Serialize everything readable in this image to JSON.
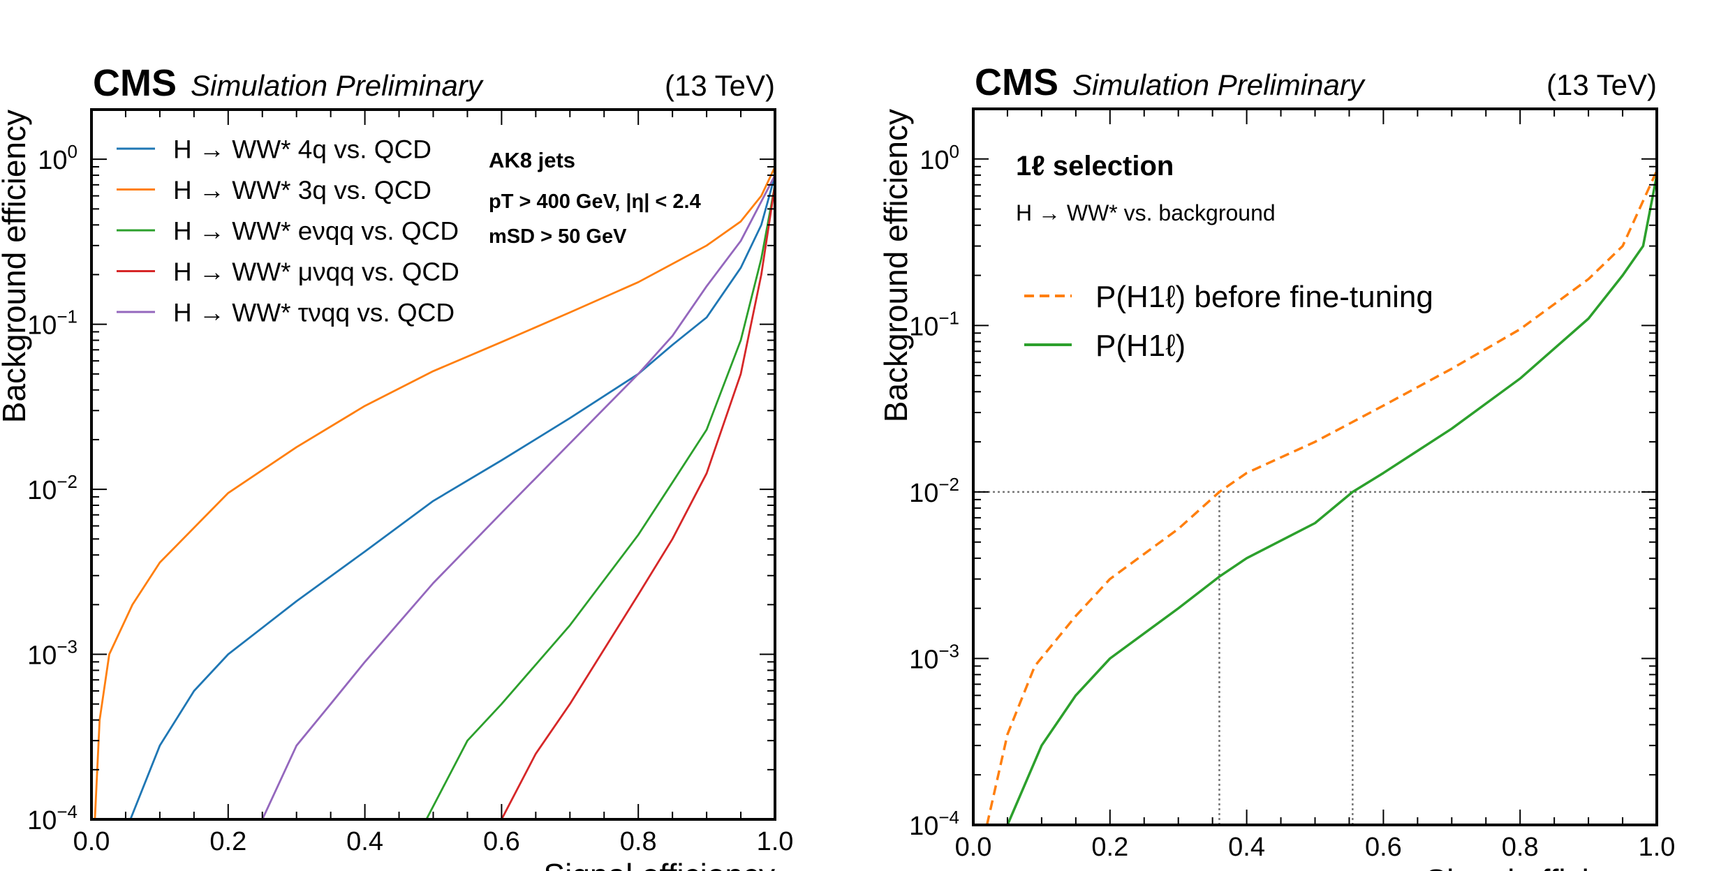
{
  "chart_data": [
    {
      "type": "line",
      "header": {
        "experiment": "CMS",
        "status": "Simulation Preliminary",
        "energy": "(13 TeV)"
      },
      "xlabel": "Signal efficiency",
      "ylabel": "Background efficiency",
      "xlim": [
        0,
        1
      ],
      "ylim": [
        0.0001,
        2
      ],
      "yscale": "log",
      "xticks": [
        "0.0",
        "0.2",
        "0.4",
        "0.6",
        "0.8",
        "1.0"
      ],
      "yticks": [
        {
          "base": "10",
          "exp": "−4",
          "value": 0.0001
        },
        {
          "base": "10",
          "exp": "−3",
          "value": 0.001
        },
        {
          "base": "10",
          "exp": "−2",
          "value": 0.01
        },
        {
          "base": "10",
          "exp": "−1",
          "value": 0.1
        },
        {
          "base": "10",
          "exp": "0",
          "value": 1
        }
      ],
      "legend_position": "top-left",
      "annotations": [
        "AK8 jets",
        "pT > 400 GeV, |η| < 2.4",
        "mSD > 50 GeV"
      ],
      "series": [
        {
          "name": "H → WW* 4q vs. QCD",
          "color": "#1f77b4",
          "dash": false,
          "x": [
            0.057,
            0.1,
            0.15,
            0.2,
            0.3,
            0.4,
            0.5,
            0.6,
            0.7,
            0.8,
            0.85,
            0.9,
            0.95,
            0.98,
            1.0
          ],
          "y": [
            0.0001,
            0.00028,
            0.0006,
            0.001,
            0.0021,
            0.0042,
            0.0085,
            0.015,
            0.027,
            0.05,
            0.075,
            0.11,
            0.22,
            0.4,
            0.8
          ]
        },
        {
          "name": "H → WW* 3q vs. QCD",
          "color": "#ff7f0e",
          "dash": false,
          "x": [
            0.005,
            0.012,
            0.026,
            0.06,
            0.1,
            0.2,
            0.3,
            0.4,
            0.5,
            0.6,
            0.7,
            0.8,
            0.9,
            0.95,
            0.98,
            1.0
          ],
          "y": [
            0.0001,
            0.0004,
            0.001,
            0.002,
            0.0036,
            0.0095,
            0.018,
            0.032,
            0.052,
            0.078,
            0.118,
            0.18,
            0.3,
            0.42,
            0.6,
            0.9
          ]
        },
        {
          "name": "H → WW* eνqq vs. QCD",
          "color": "#2ca02c",
          "dash": false,
          "x": [
            0.49,
            0.55,
            0.6,
            0.7,
            0.8,
            0.85,
            0.9,
            0.95,
            0.98,
            1.0
          ],
          "y": [
            0.0001,
            0.0003,
            0.0005,
            0.0015,
            0.0053,
            0.011,
            0.023,
            0.08,
            0.25,
            0.7
          ]
        },
        {
          "name": "H → WW* μνqq vs. QCD",
          "color": "#d62728",
          "dash": false,
          "x": [
            0.6,
            0.65,
            0.7,
            0.8,
            0.85,
            0.9,
            0.95,
            0.98,
            1.0
          ],
          "y": [
            0.0001,
            0.00025,
            0.0005,
            0.0023,
            0.005,
            0.0125,
            0.05,
            0.2,
            0.7
          ]
        },
        {
          "name": "H → WW* τνqq vs. QCD",
          "color": "#9467bd",
          "dash": false,
          "x": [
            0.25,
            0.3,
            0.35,
            0.4,
            0.5,
            0.6,
            0.7,
            0.8,
            0.85,
            0.9,
            0.95,
            1.0
          ],
          "y": [
            0.0001,
            0.00028,
            0.0005,
            0.0009,
            0.0027,
            0.0072,
            0.019,
            0.05,
            0.085,
            0.17,
            0.32,
            0.8
          ]
        }
      ],
      "reference_lines": []
    },
    {
      "type": "line",
      "header": {
        "experiment": "CMS",
        "status": "Simulation Preliminary",
        "energy": "(13 TeV)"
      },
      "xlabel": "Signal efficiency",
      "ylabel": "Background efficiency",
      "xlim": [
        0,
        1
      ],
      "ylim": [
        0.0001,
        2
      ],
      "yscale": "log",
      "xticks": [
        "0.0",
        "0.2",
        "0.4",
        "0.6",
        "0.8",
        "1.0"
      ],
      "yticks": [
        {
          "base": "10",
          "exp": "−4",
          "value": 0.0001
        },
        {
          "base": "10",
          "exp": "−3",
          "value": 0.001
        },
        {
          "base": "10",
          "exp": "−2",
          "value": 0.01
        },
        {
          "base": "10",
          "exp": "−1",
          "value": 0.1
        },
        {
          "base": "10",
          "exp": "0",
          "value": 1
        }
      ],
      "legend_position": "upper-left",
      "annotations": [
        "1ℓ   selection",
        "H → WW* vs. background"
      ],
      "series": [
        {
          "name": "P(H1ℓ) before fine-tuning",
          "color": "#ff7f0e",
          "dash": true,
          "x": [
            0.02,
            0.05,
            0.09,
            0.15,
            0.2,
            0.3,
            0.36,
            0.4,
            0.5,
            0.6,
            0.7,
            0.8,
            0.9,
            0.95,
            1.0
          ],
          "y": [
            0.0001,
            0.00035,
            0.0009,
            0.0018,
            0.003,
            0.006,
            0.01,
            0.013,
            0.02,
            0.033,
            0.055,
            0.095,
            0.19,
            0.3,
            0.85
          ]
        },
        {
          "name": "P(H1ℓ)",
          "color": "#2ca02c",
          "dash": false,
          "x": [
            0.05,
            0.1,
            0.15,
            0.2,
            0.3,
            0.36,
            0.4,
            0.5,
            0.555,
            0.6,
            0.7,
            0.8,
            0.9,
            0.95,
            0.98,
            1.0
          ],
          "y": [
            0.0001,
            0.0003,
            0.0006,
            0.001,
            0.002,
            0.0031,
            0.004,
            0.0065,
            0.01,
            0.013,
            0.024,
            0.048,
            0.11,
            0.2,
            0.3,
            0.8
          ]
        }
      ],
      "reference_lines": [
        {
          "axis": "y",
          "value": 0.01
        },
        {
          "axis": "x",
          "value": 0.36
        },
        {
          "axis": "x",
          "value": 0.555
        }
      ]
    }
  ]
}
